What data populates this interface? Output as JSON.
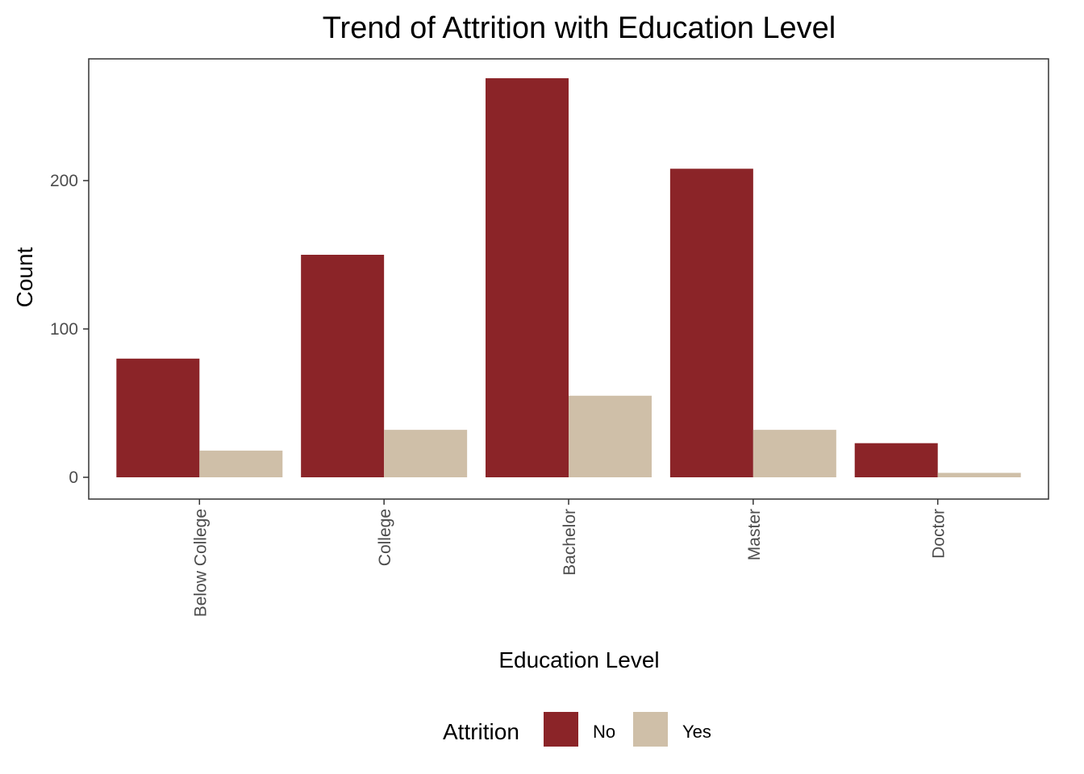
{
  "chart_data": {
    "type": "bar",
    "title": "Trend of Attrition with Education Level",
    "xlabel": "Education Level",
    "ylabel": "Count",
    "categories": [
      "Below College",
      "College",
      "Bachelor",
      "Master",
      "Doctor"
    ],
    "series": [
      {
        "name": "No",
        "color": "#8b2428",
        "values": [
          80,
          150,
          269,
          208,
          23
        ]
      },
      {
        "name": "Yes",
        "color": "#cfbfa8",
        "values": [
          18,
          32,
          55,
          32,
          3
        ]
      }
    ],
    "ylim": [
      -15,
      285
    ],
    "yticks": [
      0,
      100,
      200
    ],
    "legend_title": "Attrition",
    "legend_position": "bottom",
    "grid": false
  }
}
